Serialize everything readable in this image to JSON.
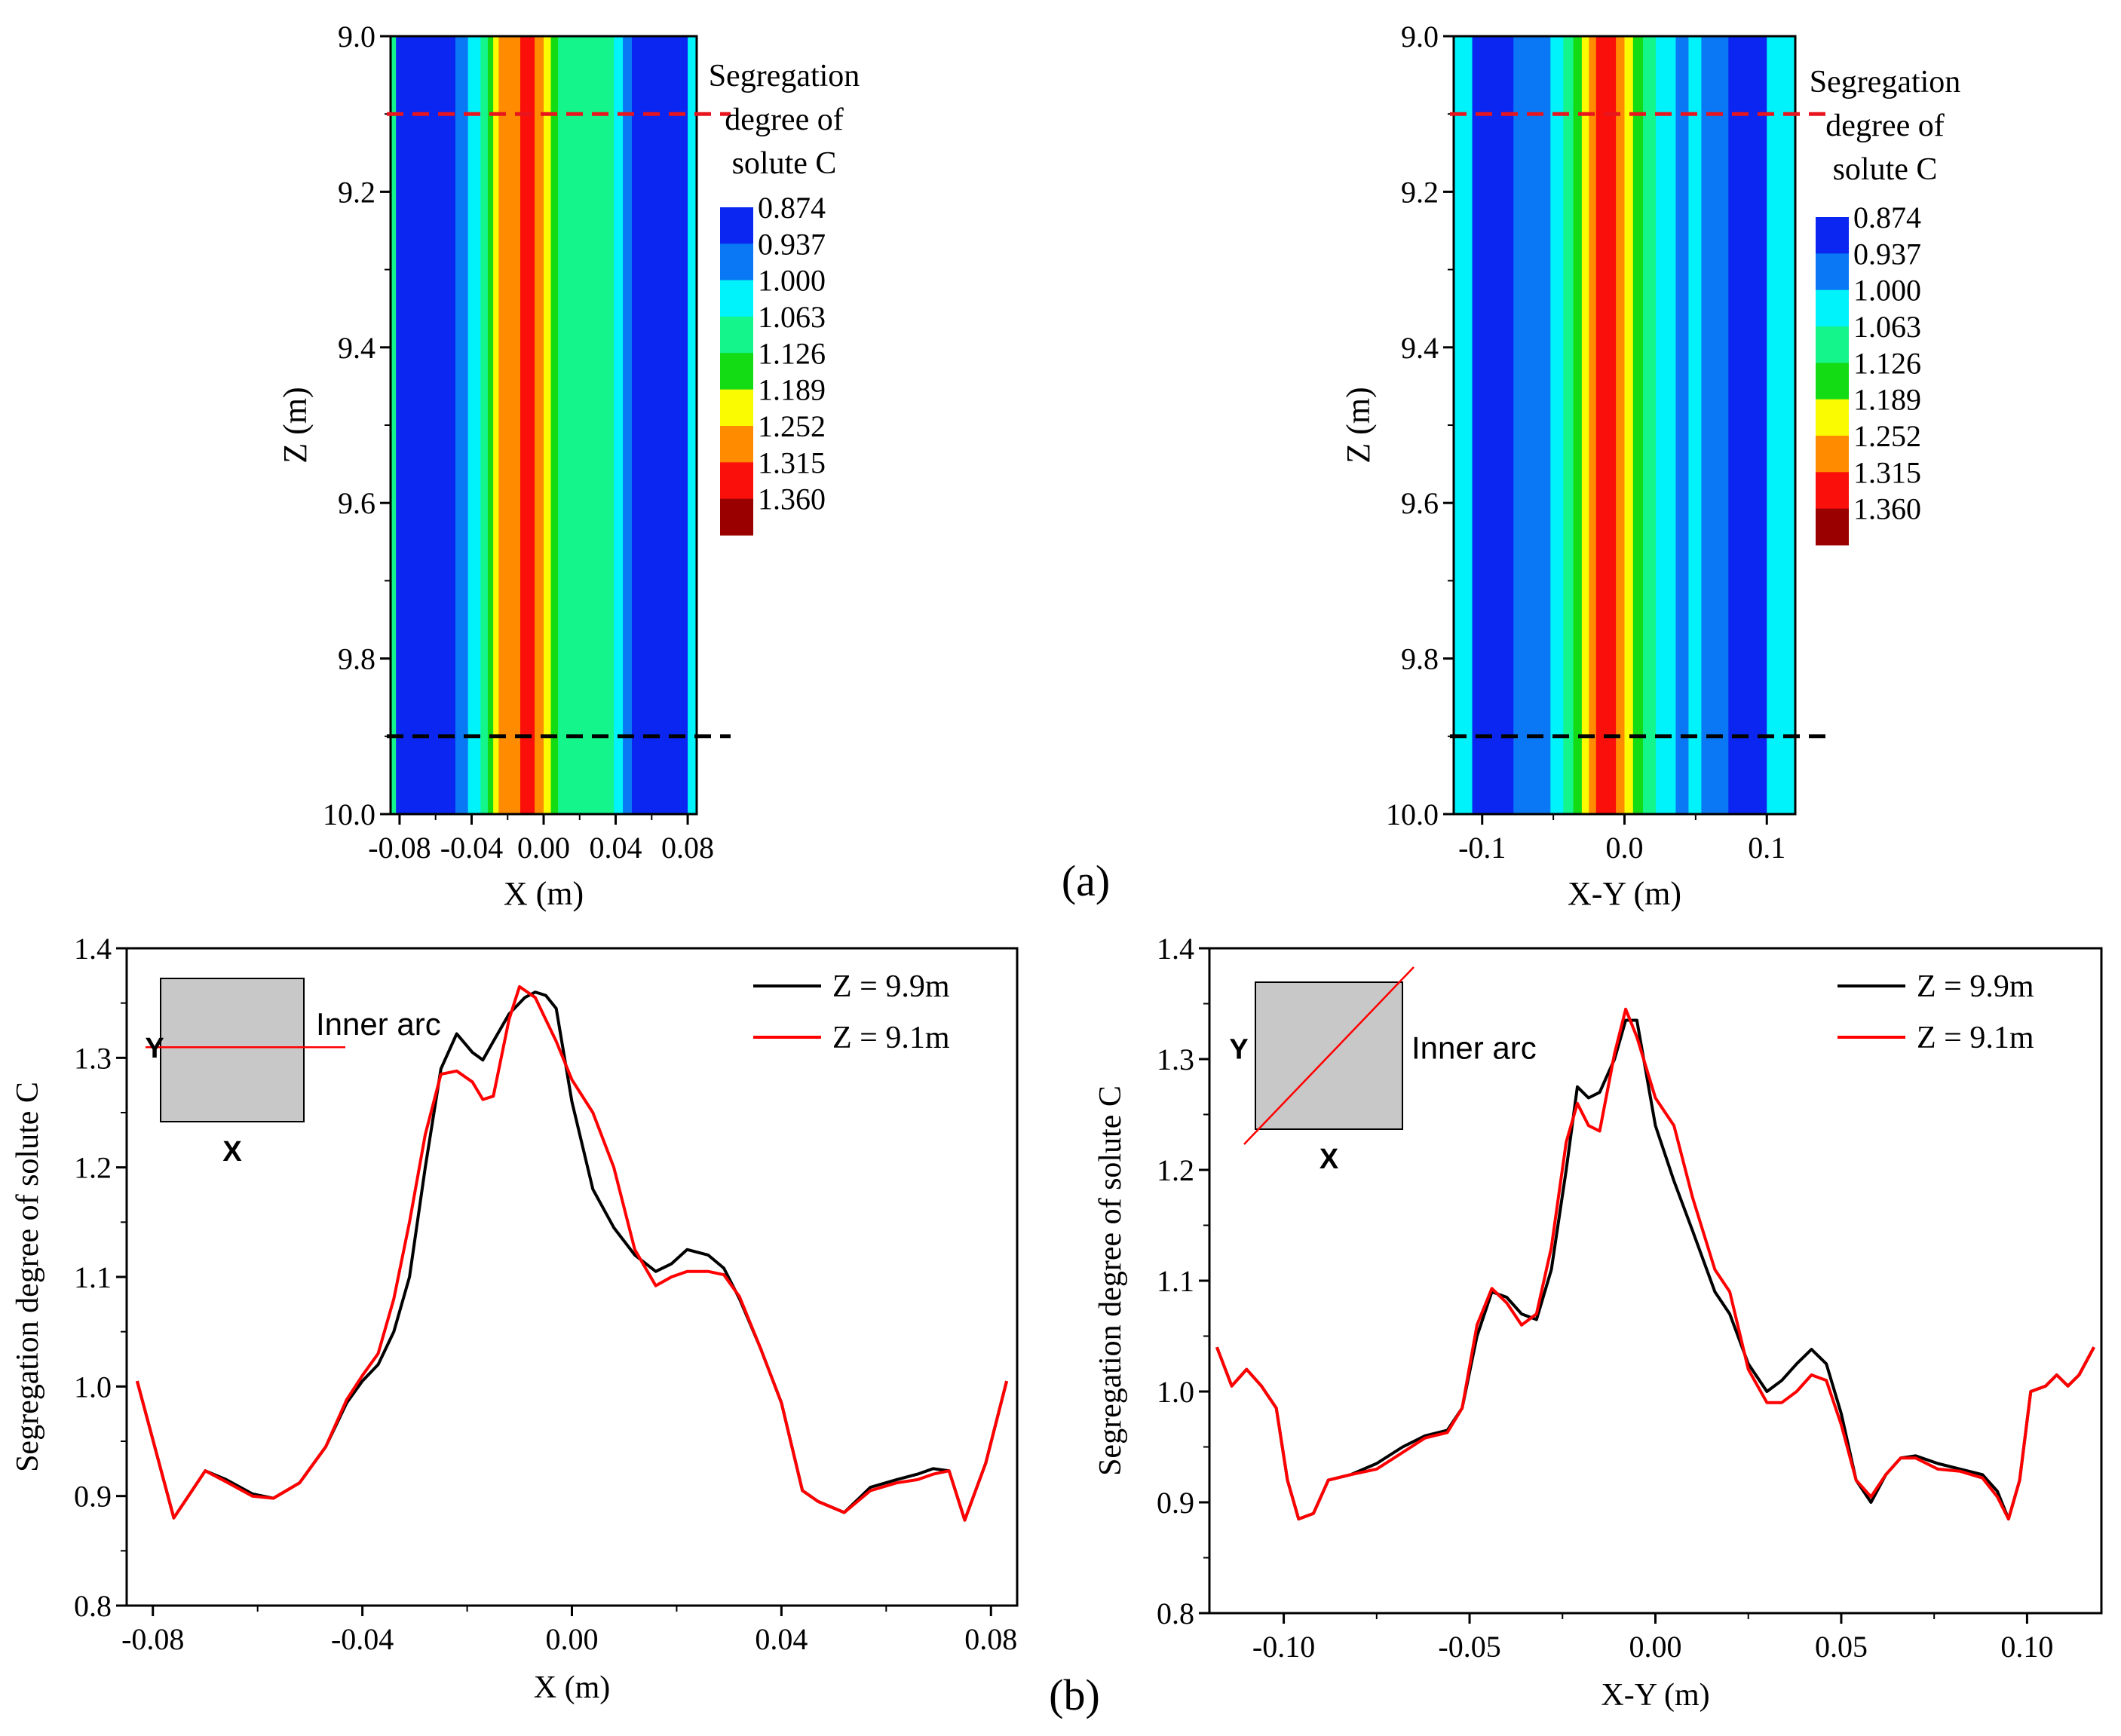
{
  "figure": {
    "label_a": "(a)",
    "label_b": "(b)"
  },
  "colorbar": {
    "title_lines": [
      "Segregation",
      "degree of",
      "solute C"
    ],
    "levels": [
      "0.874",
      "0.937",
      "1.000",
      "1.063",
      "1.126",
      "1.189",
      "1.252",
      "1.315",
      "1.360"
    ],
    "colors": [
      "#0a26f0",
      "#0a78f5",
      "#00f2fa",
      "#14f58c",
      "#14dc14",
      "#fafa00",
      "#ff8c00",
      "#fa0f0a",
      "#9a0000"
    ]
  },
  "chart_data": [
    {
      "id": "a-left",
      "type": "heatmap",
      "xlabel": "X (m)",
      "ylabel": "Z (m)",
      "xlim": [
        -0.085,
        0.085
      ],
      "ylim": [
        10.0,
        9.0
      ],
      "xticks": [
        -0.08,
        -0.04,
        0.0,
        0.04,
        0.08
      ],
      "xtick_labels": [
        "-0.08",
        "-0.04",
        "0.00",
        "0.04",
        "0.08"
      ],
      "yticks": [
        9.0,
        9.2,
        9.4,
        9.6,
        9.8,
        10.0
      ],
      "ytick_labels": [
        "9.0",
        "9.2",
        "9.4",
        "9.6",
        "9.8",
        "10.0"
      ],
      "bands": [
        {
          "x0": -0.085,
          "x1": -0.082,
          "level": 3
        },
        {
          "x0": -0.082,
          "x1": -0.049,
          "level": 0
        },
        {
          "x0": -0.049,
          "x1": -0.042,
          "level": 1
        },
        {
          "x0": -0.042,
          "x1": -0.035,
          "level": 2
        },
        {
          "x0": -0.035,
          "x1": -0.031,
          "level": 3
        },
        {
          "x0": -0.031,
          "x1": -0.028,
          "level": 4
        },
        {
          "x0": -0.028,
          "x1": -0.025,
          "level": 5
        },
        {
          "x0": -0.025,
          "x1": -0.013,
          "level": 6
        },
        {
          "x0": -0.013,
          "x1": -0.005,
          "level": 7
        },
        {
          "x0": -0.005,
          "x1": 0.0,
          "level": 6
        },
        {
          "x0": 0.0,
          "x1": 0.004,
          "level": 5
        },
        {
          "x0": 0.004,
          "x1": 0.008,
          "level": 4
        },
        {
          "x0": 0.008,
          "x1": 0.039,
          "level": 3
        },
        {
          "x0": 0.039,
          "x1": 0.044,
          "level": 2
        },
        {
          "x0": 0.044,
          "x1": 0.049,
          "level": 1
        },
        {
          "x0": 0.049,
          "x1": 0.08,
          "level": 0
        },
        {
          "x0": 0.08,
          "x1": 0.085,
          "level": 2
        }
      ],
      "lines": [
        {
          "z": 9.1,
          "color": "#e8141e",
          "label": "Z = 9.1m"
        },
        {
          "z": 9.9,
          "color": "#000000",
          "label": "Z = 9.9m"
        }
      ]
    },
    {
      "id": "a-right",
      "type": "heatmap",
      "xlabel": "X-Y (m)",
      "ylabel": "Z (m)",
      "xlim": [
        -0.12,
        0.12
      ],
      "ylim": [
        10.0,
        9.0
      ],
      "xticks": [
        -0.1,
        0.0,
        0.1
      ],
      "xtick_labels": [
        "-0.1",
        "0.0",
        "0.1"
      ],
      "yticks": [
        9.0,
        9.2,
        9.4,
        9.6,
        9.8,
        10.0
      ],
      "ytick_labels": [
        "9.0",
        "9.2",
        "9.4",
        "9.6",
        "9.8",
        "10.0"
      ],
      "bands": [
        {
          "x0": -0.12,
          "x1": -0.107,
          "level": 2
        },
        {
          "x0": -0.107,
          "x1": -0.078,
          "level": 0
        },
        {
          "x0": -0.078,
          "x1": -0.052,
          "level": 1
        },
        {
          "x0": -0.052,
          "x1": -0.043,
          "level": 2
        },
        {
          "x0": -0.043,
          "x1": -0.036,
          "level": 3
        },
        {
          "x0": -0.036,
          "x1": -0.03,
          "level": 4
        },
        {
          "x0": -0.03,
          "x1": -0.025,
          "level": 5
        },
        {
          "x0": -0.025,
          "x1": -0.02,
          "level": 6
        },
        {
          "x0": -0.02,
          "x1": -0.006,
          "level": 7
        },
        {
          "x0": -0.006,
          "x1": 0.0,
          "level": 6
        },
        {
          "x0": 0.0,
          "x1": 0.006,
          "level": 5
        },
        {
          "x0": 0.006,
          "x1": 0.013,
          "level": 4
        },
        {
          "x0": 0.013,
          "x1": 0.022,
          "level": 3
        },
        {
          "x0": 0.022,
          "x1": 0.036,
          "level": 2
        },
        {
          "x0": 0.036,
          "x1": 0.045,
          "level": 1
        },
        {
          "x0": 0.045,
          "x1": 0.054,
          "level": 2
        },
        {
          "x0": 0.054,
          "x1": 0.073,
          "level": 1
        },
        {
          "x0": 0.073,
          "x1": 0.1,
          "level": 0
        },
        {
          "x0": 0.1,
          "x1": 0.12,
          "level": 2
        }
      ],
      "lines": [
        {
          "z": 9.1,
          "color": "#e8141e",
          "label": "Z = 9.1m"
        },
        {
          "z": 9.9,
          "color": "#000000",
          "label": "Z = 9.9m"
        }
      ]
    },
    {
      "id": "b-left",
      "type": "line",
      "xlabel": "X (m)",
      "ylabel": "Segregation degree of solute C",
      "xlim": [
        -0.085,
        0.085
      ],
      "ylim": [
        0.8,
        1.4
      ],
      "xticks": [
        -0.08,
        -0.04,
        0.0,
        0.04,
        0.08
      ],
      "xtick_labels": [
        "-0.08",
        "-0.04",
        "0.00",
        "0.04",
        "0.08"
      ],
      "yticks": [
        0.8,
        0.9,
        1.0,
        1.1,
        1.2,
        1.3,
        1.4
      ],
      "ytick_labels": [
        "0.8",
        "0.9",
        "1.0",
        "1.1",
        "1.2",
        "1.3",
        "1.4"
      ],
      "inset": {
        "y_label": "Y",
        "x_label": "X",
        "annotation": "Inner arc",
        "line": "horizontal"
      },
      "series": [
        {
          "name": "Z = 9.9m",
          "color": "#000000",
          "x": [
            -0.083,
            -0.076,
            -0.07,
            -0.066,
            -0.061,
            -0.057,
            -0.052,
            -0.047,
            -0.043,
            -0.04,
            -0.037,
            -0.034,
            -0.031,
            -0.028,
            -0.025,
            -0.022,
            -0.019,
            -0.017,
            -0.015,
            -0.012,
            -0.009,
            -0.007,
            -0.005,
            -0.003,
            0.0,
            0.004,
            0.008,
            0.012,
            0.016,
            0.019,
            0.022,
            0.026,
            0.029,
            0.032,
            0.036,
            0.04,
            0.044,
            0.047,
            0.052,
            0.057,
            0.062,
            0.066,
            0.069,
            0.072,
            0.075,
            0.079,
            0.083
          ],
          "y": [
            1.005,
            0.88,
            0.923,
            0.915,
            0.902,
            0.898,
            0.912,
            0.945,
            0.985,
            1.005,
            1.02,
            1.05,
            1.1,
            1.2,
            1.29,
            1.322,
            1.305,
            1.298,
            1.315,
            1.34,
            1.355,
            1.36,
            1.357,
            1.345,
            1.26,
            1.18,
            1.145,
            1.12,
            1.105,
            1.112,
            1.125,
            1.12,
            1.108,
            1.08,
            1.035,
            0.985,
            0.905,
            0.895,
            0.885,
            0.908,
            0.915,
            0.92,
            0.925,
            0.923,
            0.878,
            0.93,
            1.005
          ]
        },
        {
          "name": "Z = 9.1m",
          "color": "#ff0000",
          "x": [
            -0.083,
            -0.076,
            -0.07,
            -0.066,
            -0.061,
            -0.057,
            -0.052,
            -0.047,
            -0.043,
            -0.04,
            -0.037,
            -0.034,
            -0.031,
            -0.028,
            -0.025,
            -0.022,
            -0.019,
            -0.017,
            -0.015,
            -0.012,
            -0.01,
            -0.007,
            -0.005,
            -0.003,
            0.0,
            0.004,
            0.008,
            0.012,
            0.016,
            0.019,
            0.022,
            0.026,
            0.029,
            0.032,
            0.036,
            0.04,
            0.044,
            0.047,
            0.052,
            0.057,
            0.062,
            0.066,
            0.069,
            0.072,
            0.075,
            0.079,
            0.083
          ],
          "y": [
            1.005,
            0.88,
            0.923,
            0.913,
            0.9,
            0.898,
            0.912,
            0.945,
            0.988,
            1.01,
            1.03,
            1.08,
            1.15,
            1.23,
            1.285,
            1.288,
            1.278,
            1.262,
            1.265,
            1.335,
            1.365,
            1.355,
            1.335,
            1.315,
            1.28,
            1.25,
            1.2,
            1.125,
            1.092,
            1.1,
            1.105,
            1.105,
            1.102,
            1.082,
            1.035,
            0.985,
            0.905,
            0.895,
            0.885,
            0.905,
            0.912,
            0.915,
            0.92,
            0.923,
            0.878,
            0.93,
            1.005
          ]
        }
      ]
    },
    {
      "id": "b-right",
      "type": "line",
      "xlabel": "X-Y (m)",
      "ylabel": "Segregation degree of solute C",
      "xlim": [
        -0.12,
        0.12
      ],
      "ylim": [
        0.8,
        1.4
      ],
      "xticks": [
        -0.1,
        -0.05,
        0.0,
        0.05,
        0.1
      ],
      "xtick_labels": [
        "-0.10",
        "-0.05",
        "0.00",
        "0.05",
        "0.10"
      ],
      "yticks": [
        0.8,
        0.9,
        1.0,
        1.1,
        1.2,
        1.3,
        1.4
      ],
      "ytick_labels": [
        "0.8",
        "0.9",
        "1.0",
        "1.1",
        "1.2",
        "1.3",
        "1.4"
      ],
      "inset": {
        "y_label": "Y",
        "x_label": "X",
        "annotation": "Inner arc",
        "line": "diagonal"
      },
      "series": [
        {
          "name": "Z = 9.9m",
          "color": "#000000",
          "x": [
            -0.118,
            -0.114,
            -0.11,
            -0.106,
            -0.102,
            -0.099,
            -0.096,
            -0.092,
            -0.088,
            -0.082,
            -0.075,
            -0.068,
            -0.062,
            -0.056,
            -0.052,
            -0.048,
            -0.044,
            -0.04,
            -0.036,
            -0.032,
            -0.028,
            -0.024,
            -0.021,
            -0.018,
            -0.015,
            -0.011,
            -0.008,
            -0.005,
            0.0,
            0.005,
            0.01,
            0.016,
            0.02,
            0.025,
            0.03,
            0.034,
            0.038,
            0.042,
            0.046,
            0.05,
            0.054,
            0.058,
            0.062,
            0.066,
            0.07,
            0.076,
            0.082,
            0.088,
            0.092,
            0.095,
            0.098,
            0.101,
            0.105,
            0.108,
            0.111,
            0.114,
            0.118
          ],
          "y": [
            1.04,
            1.005,
            1.02,
            1.005,
            0.985,
            0.92,
            0.885,
            0.89,
            0.92,
            0.925,
            0.935,
            0.95,
            0.96,
            0.965,
            0.985,
            1.05,
            1.09,
            1.085,
            1.07,
            1.065,
            1.11,
            1.2,
            1.275,
            1.265,
            1.27,
            1.3,
            1.335,
            1.335,
            1.24,
            1.19,
            1.145,
            1.09,
            1.07,
            1.025,
            1.0,
            1.01,
            1.025,
            1.038,
            1.025,
            0.98,
            0.92,
            0.9,
            0.925,
            0.94,
            0.942,
            0.935,
            0.93,
            0.925,
            0.91,
            0.885,
            0.92,
            1.0,
            1.005,
            1.015,
            1.005,
            1.015,
            1.04
          ]
        },
        {
          "name": "Z = 9.1m",
          "color": "#ff0000",
          "x": [
            -0.118,
            -0.114,
            -0.11,
            -0.106,
            -0.102,
            -0.099,
            -0.096,
            -0.092,
            -0.088,
            -0.082,
            -0.075,
            -0.068,
            -0.062,
            -0.056,
            -0.052,
            -0.048,
            -0.044,
            -0.04,
            -0.036,
            -0.032,
            -0.028,
            -0.024,
            -0.021,
            -0.018,
            -0.015,
            -0.011,
            -0.008,
            -0.005,
            0.0,
            0.005,
            0.01,
            0.016,
            0.02,
            0.025,
            0.03,
            0.034,
            0.038,
            0.042,
            0.046,
            0.05,
            0.054,
            0.058,
            0.062,
            0.066,
            0.07,
            0.076,
            0.082,
            0.088,
            0.092,
            0.095,
            0.098,
            0.101,
            0.105,
            0.108,
            0.111,
            0.114,
            0.118
          ],
          "y": [
            1.04,
            1.005,
            1.02,
            1.005,
            0.985,
            0.92,
            0.885,
            0.89,
            0.92,
            0.925,
            0.93,
            0.945,
            0.958,
            0.963,
            0.985,
            1.06,
            1.093,
            1.08,
            1.06,
            1.07,
            1.13,
            1.225,
            1.26,
            1.24,
            1.235,
            1.305,
            1.345,
            1.32,
            1.265,
            1.24,
            1.175,
            1.11,
            1.09,
            1.02,
            0.99,
            0.99,
            1.0,
            1.015,
            1.01,
            0.97,
            0.92,
            0.905,
            0.925,
            0.94,
            0.94,
            0.93,
            0.928,
            0.922,
            0.905,
            0.885,
            0.92,
            1.0,
            1.005,
            1.015,
            1.005,
            1.015,
            1.04
          ]
        }
      ]
    }
  ]
}
